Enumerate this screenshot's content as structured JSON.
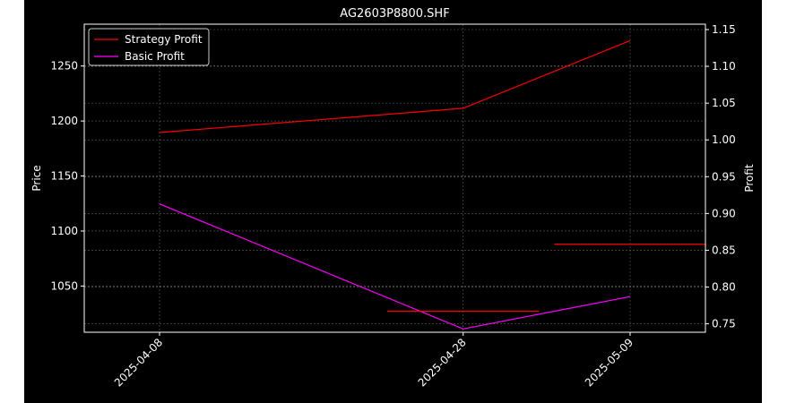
{
  "chart_data": {
    "type": "line",
    "title": "AG2603P8800.SHF",
    "xlabel": "",
    "ylabel_left": "Price",
    "ylabel_right": "Profit",
    "x": [
      "2025-04-08",
      "2025-04-28",
      "2025-05-09"
    ],
    "ylim_left": [
      1008,
      1288
    ],
    "ylim_right": [
      0.7385,
      1.1573
    ],
    "yticks_left": [
      1050,
      1100,
      1150,
      1200,
      1250
    ],
    "yticks_right": [
      0.75,
      0.8,
      0.85,
      0.9,
      0.95,
      1.0,
      1.05,
      1.1,
      1.15
    ],
    "grid": true,
    "legend_position": "top-left",
    "series": [
      {
        "name": "Strategy Profit",
        "axis": "right",
        "color": "#ff0000",
        "values": [
          1.01,
          1.043,
          1.135
        ]
      },
      {
        "name": "Basic Profit",
        "axis": "right",
        "color": "#ff00ff",
        "values": [
          0.913,
          0.743,
          0.787
        ]
      }
    ],
    "horizontal_segments": [
      {
        "color": "#ff0000",
        "y": 1027,
        "axis": "left",
        "x_from": "2025-04-23",
        "x_to": "2025-05-03"
      },
      {
        "color": "#ff0000",
        "y": 1088,
        "axis": "left",
        "x_from": "2025-05-04",
        "x_to": "2025-05-14"
      }
    ]
  }
}
